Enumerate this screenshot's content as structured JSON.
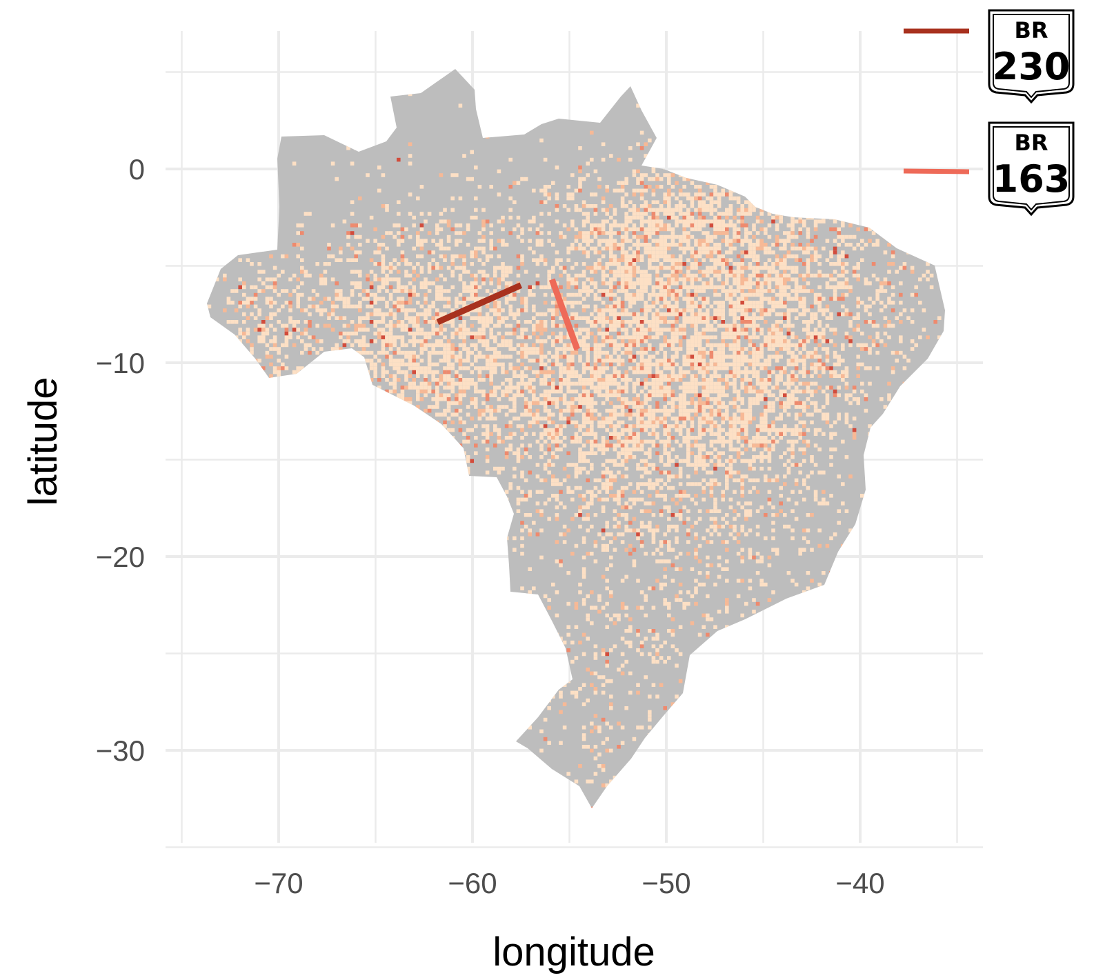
{
  "chart_data": {
    "type": "map",
    "xlabel": "longitude",
    "ylabel": "latitude",
    "xlim": [
      -75,
      -35
    ],
    "ylim": [
      -35,
      5
    ],
    "x_ticks": [
      -70,
      -60,
      -50,
      -40
    ],
    "x_tick_labels": [
      "−70",
      "−60",
      "−50",
      "−40"
    ],
    "y_ticks": [
      0,
      -10,
      -20,
      -30
    ],
    "y_tick_labels": [
      "0",
      "−10",
      "−20",
      "−30"
    ],
    "grid": true,
    "land_color": "#bdbdbd",
    "heat_colors": [
      "#fde0c5",
      "#f7b996",
      "#ee8a6e",
      "#d24c3c"
    ],
    "roads": [
      {
        "shield_top": "BR",
        "shield_number": "230",
        "color": "#a8311e",
        "path": [
          [
            -61.8,
            -7.9
          ],
          [
            -57.5,
            -6.0
          ]
        ]
      },
      {
        "shield_top": "BR",
        "shield_number": "163",
        "color": "#ee6a58",
        "path": [
          [
            -55.9,
            -5.7
          ],
          [
            -54.6,
            -9.3
          ]
        ]
      }
    ]
  }
}
